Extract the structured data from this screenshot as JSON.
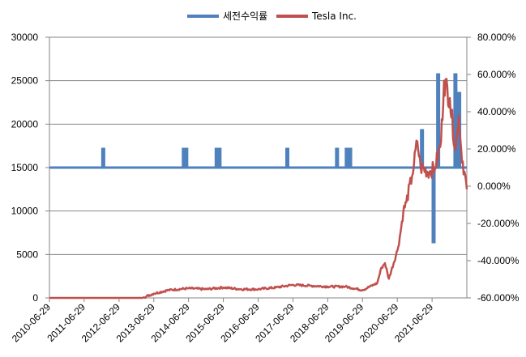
{
  "chart_data": {
    "type": "line",
    "legend": {
      "placement": "top",
      "entries": [
        {
          "name": "세전수익률",
          "color": "#4f81bd"
        },
        {
          "name": "Tesla Inc.",
          "color": "#c0504d"
        }
      ]
    },
    "x_tick_labels": [
      "2010-06-29",
      "2011-06-29",
      "2012-06-29",
      "2013-06-29",
      "2014-06-29",
      "2015-06-29",
      "2016-06-29",
      "2017-06-29",
      "2018-06-29",
      "2019-06-29",
      "2020-06-29",
      "2021-06-29"
    ],
    "x_range": [
      "2010-06-29",
      "2022-06-29"
    ],
    "y_left": {
      "ylim": [
        0,
        30000
      ],
      "ticks": [
        "0",
        "5000",
        "10000",
        "15000",
        "20000",
        "25000",
        "30000"
      ]
    },
    "y_right": {
      "ylim": [
        -60,
        80
      ],
      "ticks": [
        "-60.000%",
        "-40.000%",
        "-20.000%",
        "0.000%",
        "20.000%",
        "40.000%",
        "60.000%",
        "80.000%"
      ]
    },
    "grid": "horizontal",
    "series": [
      {
        "name": "세전수익률",
        "axis": "right",
        "color": "#4f81bd",
        "baseline": 10,
        "spikes": [
          {
            "date": "2012-01-15",
            "value": 20
          },
          {
            "date": "2014-05-10",
            "value": 20
          },
          {
            "date": "2014-06-05",
            "value": 20
          },
          {
            "date": "2015-04-20",
            "value": 20
          },
          {
            "date": "2015-05-20",
            "value": 20
          },
          {
            "date": "2017-05-01",
            "value": 20
          },
          {
            "date": "2018-10-05",
            "value": 20
          },
          {
            "date": "2019-01-15",
            "value": 20
          },
          {
            "date": "2019-02-20",
            "value": 20
          },
          {
            "date": "2021-03-15",
            "value": 30
          },
          {
            "date": "2021-07-15",
            "value": -30
          },
          {
            "date": "2021-09-01",
            "value": 60
          },
          {
            "date": "2022-03-01",
            "value": 60
          },
          {
            "date": "2022-04-10",
            "value": 50
          }
        ]
      },
      {
        "name": "Tesla Inc.",
        "axis": "left",
        "color": "#c0504d",
        "points": [
          [
            "2010-06-29",
            0
          ],
          [
            "2011-06-29",
            0
          ],
          [
            "2012-06-29",
            0
          ],
          [
            "2013-03-01",
            0
          ],
          [
            "2013-06-29",
            500
          ],
          [
            "2013-12-01",
            900
          ],
          [
            "2014-06-29",
            1100
          ],
          [
            "2015-01-01",
            1000
          ],
          [
            "2015-06-29",
            1200
          ],
          [
            "2016-01-01",
            1000
          ],
          [
            "2016-06-29",
            1000
          ],
          [
            "2017-01-01",
            1200
          ],
          [
            "2017-06-29",
            1500
          ],
          [
            "2018-01-01",
            1400
          ],
          [
            "2018-06-29",
            1300
          ],
          [
            "2019-01-01",
            1300
          ],
          [
            "2019-06-29",
            900
          ],
          [
            "2019-12-01",
            1700
          ],
          [
            "2020-01-15",
            3500
          ],
          [
            "2020-02-20",
            4000
          ],
          [
            "2020-04-01",
            2200
          ],
          [
            "2020-07-01",
            5500
          ],
          [
            "2020-08-01",
            7500
          ],
          [
            "2020-09-01",
            10000
          ],
          [
            "2020-10-01",
            11000
          ],
          [
            "2020-12-01",
            14000
          ],
          [
            "2021-01-25",
            18000
          ],
          [
            "2021-03-01",
            15000
          ],
          [
            "2021-06-01",
            14500
          ],
          [
            "2021-08-01",
            15000
          ],
          [
            "2021-10-01",
            18000
          ],
          [
            "2021-11-01",
            25000
          ],
          [
            "2022-01-01",
            23000
          ],
          [
            "2022-03-01",
            17000
          ],
          [
            "2022-04-05",
            21000
          ],
          [
            "2022-05-01",
            17000
          ],
          [
            "2022-06-29",
            12500
          ]
        ]
      }
    ]
  }
}
